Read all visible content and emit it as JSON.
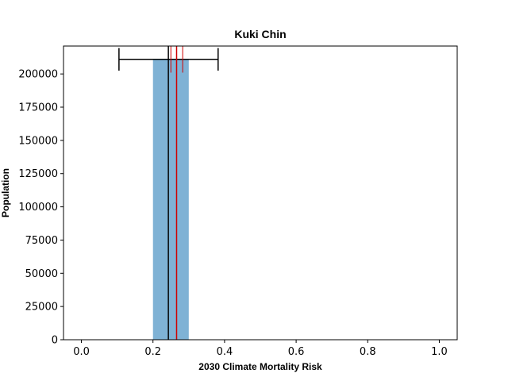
{
  "chart_data": {
    "type": "bar",
    "title": "Kuki Chin",
    "xlabel": "2030 Climate Mortality Risk",
    "ylabel": "Population",
    "xlim": [
      -0.05,
      1.05
    ],
    "ylim": [
      0,
      221000
    ],
    "x_ticks": [
      0.0,
      0.2,
      0.4,
      0.6,
      0.8,
      1.0
    ],
    "x_tick_labels": [
      "0.0",
      "0.2",
      "0.4",
      "0.6",
      "0.8",
      "1.0"
    ],
    "y_ticks": [
      0,
      25000,
      50000,
      75000,
      100000,
      125000,
      150000,
      175000,
      200000
    ],
    "y_tick_labels": [
      "0",
      "25000",
      "50000",
      "75000",
      "100000",
      "125000",
      "150000",
      "175000",
      "200000"
    ],
    "bars": [
      {
        "x_start": 0.2,
        "x_end": 0.3,
        "value": 211000,
        "color": "#7fb2d5"
      }
    ],
    "black_vline_x": 0.243,
    "black_errorbar": {
      "y": 211000,
      "x_low": 0.105,
      "x_high": 0.382,
      "cap_half_height": 8500
    },
    "red_vline_x": 0.266,
    "red_interval": {
      "x_low": 0.25,
      "x_high": 0.283,
      "y_low": 201000,
      "y_high": 221000
    },
    "grid": false,
    "legend": "none"
  }
}
